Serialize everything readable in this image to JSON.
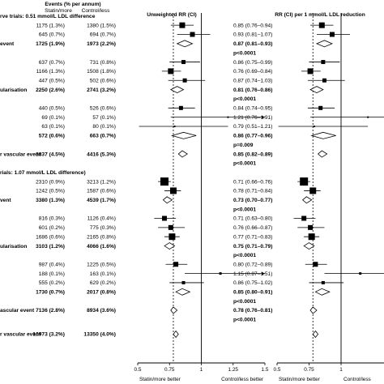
{
  "chart_data": {
    "type": "forest",
    "col_events_header": "Events (% per annum)",
    "col_statin": "Statin/more",
    "col_control": "Control/less",
    "panels": [
      {
        "title": "Unweighted RR (CI)",
        "ticks": [
          "0.5",
          "0.75",
          "1",
          "1.25",
          "1.5"
        ],
        "xlim": [
          0.5,
          1.5
        ],
        "dashed_ref": 0.78,
        "bottom_left": "Statin/more better",
        "bottom_right": "Control/less better"
      },
      {
        "title": "RR (CI) per 1 mmol/L LDL reduction",
        "ticks": [
          "0.5",
          "0.75",
          "1"
        ],
        "xlim": [
          0.5,
          1.5
        ],
        "dashed_ref": 0.78,
        "bottom_left": "Statin/more better",
        "bottom_right": "Control/less"
      }
    ],
    "rows": [
      {
        "label": "rve trials: 0.51 mmol/L LDL difference",
        "kind": "header"
      },
      {
        "statin": "1175 (1.3%)",
        "control": "1380 (1.5%)",
        "rr": "0.85 (0.76–0.94)",
        "est": 0.85,
        "lo": 0.76,
        "hi": 0.94,
        "w": 7,
        "kind": "box"
      },
      {
        "statin": "645 (0.7%)",
        "control": "694 (0.7%)",
        "rr": "0.93 (0.81–1.07)",
        "est": 0.93,
        "lo": 0.81,
        "hi": 1.07,
        "w": 6,
        "kind": "box"
      },
      {
        "label": "event",
        "statin": "1725 (1.9%)",
        "control": "1973 (2.2%)",
        "rr": "0.87 (0.81–0.93)",
        "est": 0.87,
        "lo": 0.81,
        "hi": 0.93,
        "kind": "diamond",
        "bold": true
      },
      {
        "rr": "p<0.0001",
        "kind": "pval"
      },
      {
        "statin": "637 (0.7%)",
        "control": "731 (0.8%)",
        "rr": "0.86 (0.75–0.99)",
        "est": 0.86,
        "lo": 0.75,
        "hi": 0.99,
        "w": 5,
        "kind": "box"
      },
      {
        "statin": "1166 (1.3%)",
        "control": "1508 (1.8%)",
        "rr": "0.76 (0.69–0.84)",
        "est": 0.76,
        "lo": 0.69,
        "hi": 0.84,
        "w": 7,
        "kind": "box"
      },
      {
        "statin": "447 (0.5%)",
        "control": "502 (0.6%)",
        "rr": "0.87 (0.74–1.03)",
        "est": 0.87,
        "lo": 0.74,
        "hi": 1.03,
        "w": 5,
        "kind": "box"
      },
      {
        "label": "ularisation",
        "statin": "2250 (2.6%)",
        "control": "2741 (3.2%)",
        "rr": "0.81 (0.76–0.86)",
        "est": 0.81,
        "lo": 0.76,
        "hi": 0.86,
        "kind": "diamond",
        "bold": true
      },
      {
        "rr": "p<0.0001",
        "kind": "pval"
      },
      {
        "statin": "440 (0.5%)",
        "control": "526 (0.6%)",
        "rr": "0.84 (0.74–0.95)",
        "est": 0.84,
        "lo": 0.74,
        "hi": 0.95,
        "w": 5,
        "kind": "box"
      },
      {
        "statin": "69 (0.1%)",
        "control": "57 (0.1%)",
        "rr": "1.21 (0.76–1.91)",
        "est": 1.21,
        "lo": 0.76,
        "hi": 1.91,
        "w": 2,
        "kind": "box"
      },
      {
        "statin": "63 (0.1%)",
        "control": "80 (0.1%)",
        "rr": "0.79 (0.51–1.21)",
        "est": 0.79,
        "lo": 0.51,
        "hi": 1.21,
        "w": 2,
        "kind": "box"
      },
      {
        "statin": "572 (0.6%)",
        "control": "663 (0.7%)",
        "rr": "0.86 (0.77–0.96)",
        "est": 0.86,
        "lo": 0.77,
        "hi": 0.96,
        "kind": "diamond",
        "bold": true
      },
      {
        "rr": "p=0.009",
        "kind": "pval"
      },
      {
        "label": "r vascular event",
        "statin": "3837 (4.5%)",
        "control": "4416 (5.3%)",
        "rr": "0.85 (0.82–0.89)",
        "est": 0.85,
        "lo": 0.82,
        "hi": 0.89,
        "kind": "diamond",
        "bold": true
      },
      {
        "rr": "p<0.0001",
        "kind": "pval"
      },
      {
        "label": "rials: 1.07 mmol/L LDL difference)",
        "kind": "header"
      },
      {
        "statin": "2310 (0.9%)",
        "control": "3213 (1.2%)",
        "rr": "0.71 (0.66–0.76)",
        "est": 0.71,
        "lo": 0.66,
        "hi": 0.76,
        "w": 10,
        "kind": "box"
      },
      {
        "statin": "1242 (0.5%)",
        "control": "1587 (0.6%)",
        "rr": "0.78 (0.71–0.84)",
        "est": 0.78,
        "lo": 0.71,
        "hi": 0.84,
        "w": 8,
        "kind": "box"
      },
      {
        "label": "vent",
        "statin": "3380 (1.3%)",
        "control": "4539 (1.7%)",
        "rr": "0.73 (0.70–0.77)",
        "est": 0.73,
        "lo": 0.7,
        "hi": 0.77,
        "kind": "diamond",
        "bold": true
      },
      {
        "rr": "p<0.0001",
        "kind": "pval"
      },
      {
        "statin": "816 (0.3%)",
        "control": "1126 (0.4%)",
        "rr": "0.71 (0.63–0.80)",
        "est": 0.71,
        "lo": 0.63,
        "hi": 0.8,
        "w": 6,
        "kind": "box"
      },
      {
        "statin": "601 (0.2%)",
        "control": "775 (0.3%)",
        "rr": "0.76 (0.66–0.87)",
        "est": 0.76,
        "lo": 0.66,
        "hi": 0.87,
        "w": 6,
        "kind": "box"
      },
      {
        "statin": "1686 (0.6%)",
        "control": "2165 (0.8%)",
        "rr": "0.77 (0.71–0.83)",
        "est": 0.77,
        "lo": 0.71,
        "hi": 0.83,
        "w": 8,
        "kind": "box"
      },
      {
        "label": "ularisation",
        "statin": "3103 (1.2%)",
        "control": "4066 (1.6%)",
        "rr": "0.75 (0.71–0.79)",
        "est": 0.75,
        "lo": 0.71,
        "hi": 0.79,
        "kind": "diamond",
        "bold": true
      },
      {
        "rr": "p<0.0001",
        "kind": "pval"
      },
      {
        "statin": "987 (0.4%)",
        "control": "1225 (0.5%)",
        "rr": "0.80 (0.72–0.89)",
        "est": 0.8,
        "lo": 0.72,
        "hi": 0.89,
        "w": 6,
        "kind": "box"
      },
      {
        "statin": "188 (0.1%)",
        "control": "163 (0.1%)",
        "rr": "1.15 (0.87–1.51)",
        "est": 1.15,
        "lo": 0.87,
        "hi": 1.51,
        "w": 3,
        "kind": "box"
      },
      {
        "statin": "555 (0.2%)",
        "control": "629 (0.2%)",
        "rr": "0.86 (0.75–1.02)",
        "est": 0.86,
        "lo": 0.75,
        "hi": 1.02,
        "w": 4,
        "kind": "box"
      },
      {
        "statin": "1730 (0.7%)",
        "control": "2017 (0.8%)",
        "rr": "0.85 (0.80–0.91)",
        "est": 0.85,
        "lo": 0.8,
        "hi": 0.91,
        "kind": "diamond",
        "bold": true
      },
      {
        "rr": "p<0.0001",
        "kind": "pval"
      },
      {
        "label": "ascular event",
        "statin": "7136 (2.8%)",
        "control": "8934 (3.6%)",
        "rr": "0.78 (0.76–0.81)",
        "est": 0.78,
        "lo": 0.76,
        "hi": 0.81,
        "kind": "diamond",
        "bold": true
      },
      {
        "rr": "p<0.0001",
        "kind": "pval"
      },
      {
        "label": "r vascular event",
        "statin": "10973 (3.2%)",
        "control": "13350 (4.0%)",
        "rr": "",
        "est": 0.8,
        "lo": 0.78,
        "hi": 0.82,
        "kind": "diamond",
        "bold": true,
        "gap": true
      }
    ]
  }
}
